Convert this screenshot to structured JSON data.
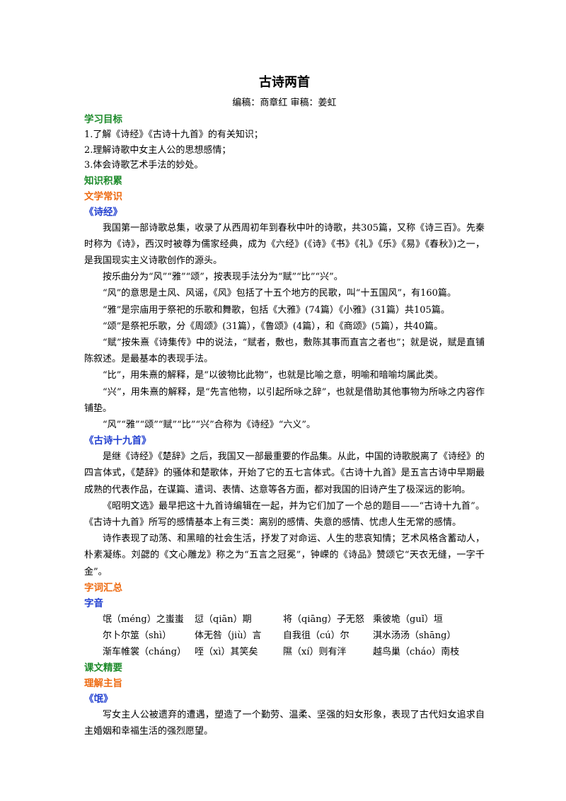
{
  "doc": {
    "title": "古诗两首",
    "byline": "编稿：商章红  审稿：姜虹"
  },
  "objectives": {
    "heading": "学习目标",
    "items": [
      "1.了解《诗经》《古诗十九首》的有关知识；",
      "2.理解诗歌中女主人公的思想感情；",
      "3.体会诗歌艺术手法的妙处。"
    ]
  },
  "knowledge": {
    "heading": "知识积累",
    "literature_heading": "文学常识",
    "shijing": {
      "heading": "《诗经》",
      "paras": [
        "我国第一部诗歌总集，收录了从西周初年到春秋中叶的诗歌，共305篇，又称《诗三百》。先秦时称为《诗》，西汉时被尊为儒家经典，成为《六经》(《诗》《书》《礼》《乐》《易》《春秋》)之一，是我国现实主义诗歌创作的源头。",
        "按乐曲分为“风”“雅”“颂”，按表现手法分为“赋”“比”“兴”。",
        "“风”的意思是土风、风谣，《风》包括了十五个地方的民歌，叫“十五国风”，有160篇。",
        "“雅”是宗庙用于祭祀的乐歌和舞歌，包括《大雅》(74篇）《小雅》(31篇）共105篇。",
        "“颂”是祭祀乐歌，分《周颂》(31篇），《鲁颂》(4篇），和《商颂》(5篇），共40篇。",
        "“赋”按朱熹《诗集传》中的说法，“赋者，敷也，敷陈其事而直言之者也”；就是说，赋是直铺陈叙述。是最基本的表现手法。",
        "“比”，用朱熹的解释，是“以彼物比此物”，也就是比喻之意，明喻和暗喻均属此类。",
        "“兴”，用朱熹的解释，是“先言他物，以引起所咏之辞”，也就是借助其他事物为所咏之内容作铺垫。",
        "“风”“雅”“颂”“赋”“比”“兴”合称为《诗经》“六义”。"
      ]
    },
    "gushi": {
      "heading": "《古诗十九首》",
      "paras": [
        "是继《诗经》《楚辞》之后，我国又一部最重要的作品集。从此，中国的诗歌脱离了《诗经》的四言体式，《楚辞》的骚体和楚歌体，开始了它的五七言体式。《古诗十九首》是五言古诗中早期最成熟的代表作品，在谋篇、遣词、表情、达意等各方面，都对我国的旧诗产生了极深远的影响。",
        "《昭明文选》最早把这十九首诗编辑在一起，并为它们加了一个总的题目——“古诗十九首”。《古诗十九首》所写的感情基本上有三类：离别的感情、失意的感情、忧虑人生无常的感情。",
        "诗作表现了动荡、和黑暗的社会生活，抒发了对命运、人生的悲哀知情；艺术风格含蓄动人，朴素凝练。刘勰的《文心雕龙》称之为“五言之冠冕”，钟嵘的《诗品》赞颂它“天衣无缝，一字千金”。"
      ]
    }
  },
  "vocabulary": {
    "heading": "字词汇总",
    "pron_heading": "字音",
    "rows": [
      [
        "氓（méng）之蚩蚩",
        "愆（qiān）期",
        "将（qiāng）子无怒",
        "乘彼垝（guǐ）垣"
      ],
      [
        "尔卜尔筮（shì）",
        "体无咎（jiù）言",
        "自我徂（cú）尔",
        "淇水汤汤（shāng）"
      ],
      [
        "渐车帷裳（cháng）",
        "咥（xì）其笑矣",
        "隰（xí）则有泮",
        "越鸟巢（cháo）南枝"
      ]
    ]
  },
  "essentials": {
    "heading": "课文精要",
    "theme_heading": "理解主旨",
    "meng": {
      "heading": "《氓》",
      "para": "写女主人公被遗弃的遭遇，塑造了一个勤劳、温柔、坚强的妇女形象，表现了古代妇女追求自主婚姻和幸福生活的强烈愿望。"
    }
  }
}
